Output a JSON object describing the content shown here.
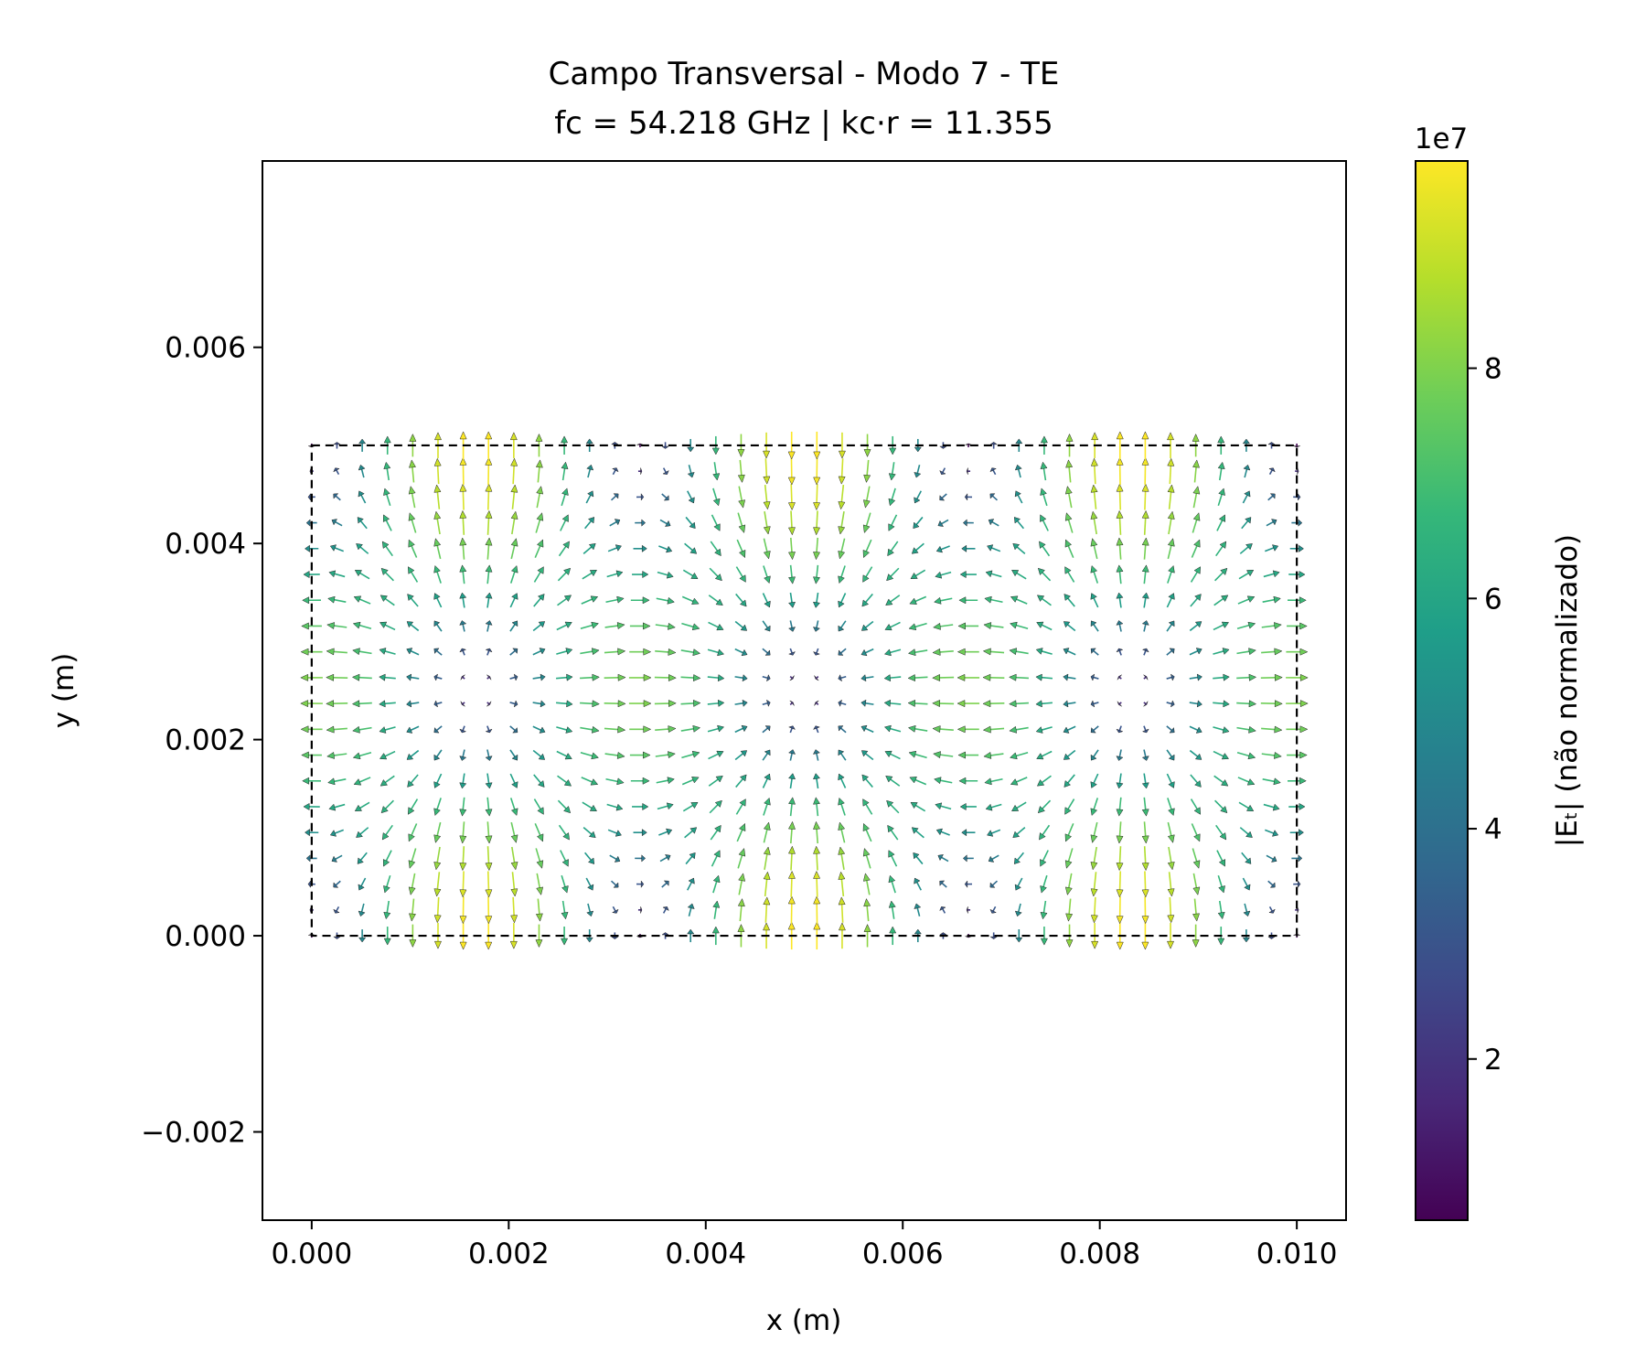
{
  "chart_data": {
    "type": "quiver",
    "title": "Campo Transversal - Modo 7 - TE",
    "subtitle": "fc = 54.218 GHz | kc·r = 11.355",
    "xlabel": "x (m)",
    "ylabel": "y (m)",
    "xlim": [
      -0.0005,
      0.0105
    ],
    "ylim": [
      -0.0029,
      0.0079
    ],
    "xticks": [
      0.0,
      0.002,
      0.004,
      0.006,
      0.008,
      0.01
    ],
    "xtick_labels": [
      "0.000",
      "0.002",
      "0.004",
      "0.006",
      "0.008",
      "0.010"
    ],
    "yticks": [
      -0.002,
      0.0,
      0.002,
      0.004,
      0.006
    ],
    "ytick_labels": [
      "−0.002",
      "0.000",
      "0.002",
      "0.004",
      "0.006"
    ],
    "grid": false,
    "boundary": {
      "x": [
        0.0,
        0.01
      ],
      "y": [
        0.0,
        0.005
      ],
      "style": "dashed"
    },
    "field": {
      "domain_x": [
        0.0,
        0.01
      ],
      "domain_y": [
        0.0,
        0.005
      ],
      "grid_nx": 40,
      "grid_ny": 20,
      "period_x": 0.00666,
      "mode_x": 3,
      "mode_y": 2,
      "node_points": [
        [
          0.00167,
          0.0025
        ],
        [
          0.005,
          0.0025
        ],
        [
          0.00833,
          0.0025
        ]
      ]
    },
    "colorbar": {
      "label": "|Eₜ| (não normalizado)",
      "colormap": "viridis",
      "range": [
        6000000.0,
        98000000.0
      ],
      "ticks": [
        20000000.0,
        40000000.0,
        60000000.0,
        80000000.0
      ],
      "tick_labels": [
        "2",
        "4",
        "6",
        "8"
      ],
      "offset_label": "1e7"
    },
    "colors": {
      "boundary": "#000000",
      "viridis_stops": [
        "#440154",
        "#482878",
        "#3e4989",
        "#31688e",
        "#26828e",
        "#1f9e89",
        "#35b779",
        "#6ece58",
        "#b5de2b",
        "#fde725"
      ]
    }
  }
}
